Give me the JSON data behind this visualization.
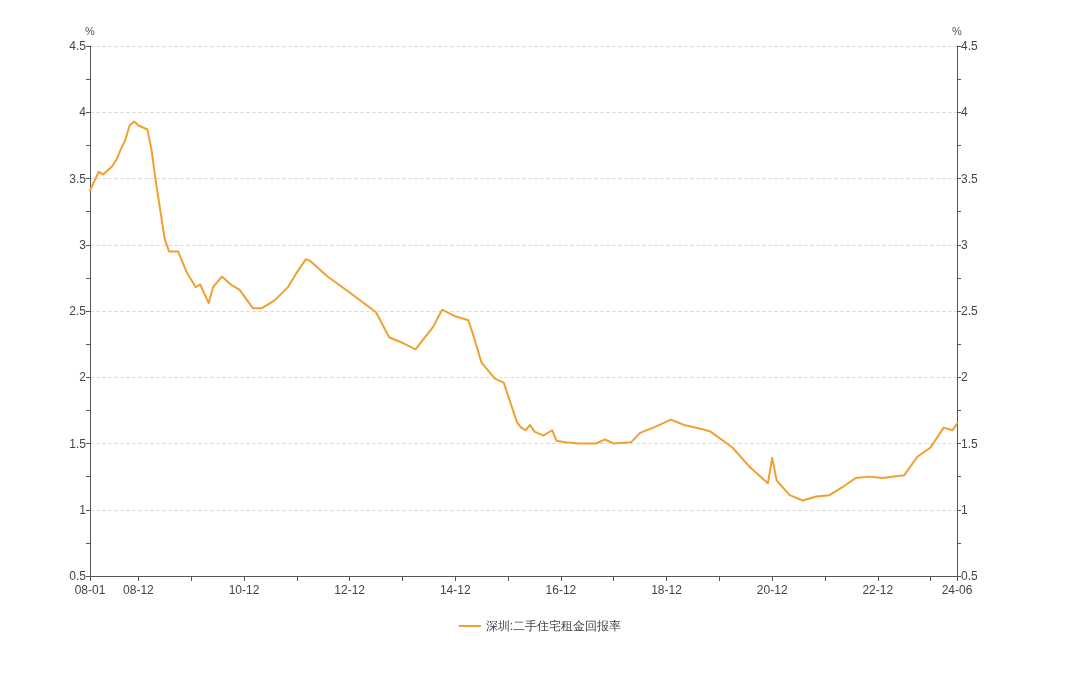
{
  "chart_data": {
    "type": "line",
    "ylabel": "%",
    "y2label": "%",
    "xlim": [
      "2008-01",
      "2024-06"
    ],
    "xticks": [
      {
        "value": "2008-01",
        "label": "08-01"
      },
      {
        "value": "2008-12",
        "label": "08-12"
      },
      {
        "value": "2009-12",
        "label": null
      },
      {
        "value": "2010-12",
        "label": "10-12"
      },
      {
        "value": "2011-12",
        "label": null
      },
      {
        "value": "2012-12",
        "label": "12-12"
      },
      {
        "value": "2013-12",
        "label": null
      },
      {
        "value": "2014-12",
        "label": "14-12"
      },
      {
        "value": "2015-12",
        "label": null
      },
      {
        "value": "2016-12",
        "label": "16-12"
      },
      {
        "value": "2017-12",
        "label": null
      },
      {
        "value": "2018-12",
        "label": "18-12"
      },
      {
        "value": "2019-12",
        "label": null
      },
      {
        "value": "2020-12",
        "label": "20-12"
      },
      {
        "value": "2021-12",
        "label": null
      },
      {
        "value": "2022-12",
        "label": "22-12"
      },
      {
        "value": "2023-12",
        "label": null
      },
      {
        "value": "2024-06",
        "label": "24-06"
      }
    ],
    "ylim": [
      0.5,
      4.5
    ],
    "yticks": [
      0.5,
      {
        "value": 0.75,
        "label": null
      },
      1,
      {
        "value": 1.25,
        "label": null
      },
      1.5,
      {
        "value": 1.75,
        "label": null
      },
      2,
      {
        "value": 2.25,
        "label": null
      },
      2.5,
      {
        "value": 2.75,
        "label": null
      },
      3,
      {
        "value": 3.25,
        "label": null
      },
      3.5,
      {
        "value": 3.75,
        "label": null
      },
      4,
      {
        "value": 4.25,
        "label": null
      },
      4.5
    ],
    "y2lim": [
      0.5,
      4.5
    ],
    "y2ticks": [
      0.5,
      {
        "value": 0.75,
        "label": null
      },
      1,
      {
        "value": 1.25,
        "label": null
      },
      1.5,
      {
        "value": 1.75,
        "label": null
      },
      2,
      {
        "value": 2.25,
        "label": null
      },
      2.5,
      {
        "value": 2.75,
        "label": null
      },
      3,
      {
        "value": 3.25,
        "label": null
      },
      3.5,
      {
        "value": 3.75,
        "label": null
      },
      4,
      {
        "value": 4.25,
        "label": null
      },
      4.5
    ],
    "grid": "y",
    "legend": "bottom",
    "marker": "none",
    "line_style": "solid",
    "series": [
      {
        "name": "深圳:二手住宅租金回报率",
        "color": "#f0a030",
        "x": [
          "2008-01",
          "2008-03",
          "2008-04",
          "2008-06",
          "2008-07",
          "2008-08",
          "2008-09",
          "2008-10",
          "2008-11",
          "2008-12",
          "2009-02",
          "2009-03",
          "2009-04",
          "2009-05",
          "2009-06",
          "2009-07",
          "2009-09",
          "2009-11",
          "2010-01",
          "2010-02",
          "2010-04",
          "2010-05",
          "2010-07",
          "2010-09",
          "2010-11",
          "2011-02",
          "2011-04",
          "2011-07",
          "2011-10",
          "2011-12",
          "2012-02",
          "2012-03",
          "2012-07",
          "2012-12",
          "2013-06",
          "2013-09",
          "2013-12",
          "2014-03",
          "2014-07",
          "2014-09",
          "2014-12",
          "2015-03",
          "2015-04",
          "2015-06",
          "2015-09",
          "2015-11",
          "2016-02",
          "2016-03",
          "2016-04",
          "2016-05",
          "2016-06",
          "2016-08",
          "2016-10",
          "2016-11",
          "2017-01",
          "2017-04",
          "2017-08",
          "2017-10",
          "2017-12",
          "2018-04",
          "2018-06",
          "2018-09",
          "2019-01",
          "2019-04",
          "2019-08",
          "2019-10",
          "2020-03",
          "2020-07",
          "2020-11",
          "2020-12",
          "2021-01",
          "2021-04",
          "2021-07",
          "2021-10",
          "2022-01",
          "2022-04",
          "2022-07",
          "2022-10",
          "2023-01",
          "2023-06",
          "2023-09",
          "2023-12",
          "2024-03",
          "2024-05",
          "2024-06"
        ],
        "values": [
          3.41,
          3.55,
          3.53,
          3.59,
          3.64,
          3.72,
          3.79,
          3.9,
          3.93,
          3.9,
          3.87,
          3.72,
          3.47,
          3.26,
          3.04,
          2.95,
          2.95,
          2.79,
          2.68,
          2.7,
          2.56,
          2.68,
          2.76,
          2.7,
          2.66,
          2.52,
          2.52,
          2.58,
          2.68,
          2.79,
          2.89,
          2.88,
          2.76,
          2.64,
          2.49,
          2.3,
          2.26,
          2.21,
          2.38,
          2.51,
          2.46,
          2.43,
          2.33,
          2.11,
          1.99,
          1.96,
          1.66,
          1.62,
          1.6,
          1.64,
          1.59,
          1.56,
          1.6,
          1.52,
          1.51,
          1.5,
          1.5,
          1.53,
          1.5,
          1.51,
          1.58,
          1.62,
          1.68,
          1.64,
          1.61,
          1.59,
          1.47,
          1.32,
          1.2,
          1.39,
          1.22,
          1.11,
          1.07,
          1.1,
          1.11,
          1.17,
          1.24,
          1.25,
          1.24,
          1.26,
          1.4,
          1.47,
          1.62,
          1.6,
          1.65
        ]
      }
    ]
  }
}
